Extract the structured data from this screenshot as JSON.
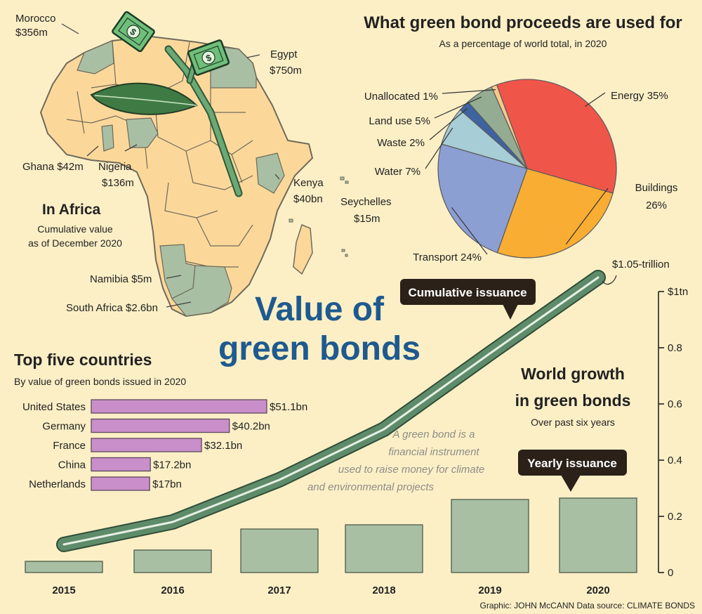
{
  "main_title": [
    "Value of",
    "green bonds"
  ],
  "credit": "Graphic: JOHN McCANN  Data source: CLIMATE BONDS",
  "africa": {
    "title": "In Africa",
    "subtitle": [
      "Cumulative value",
      "as of December 2020"
    ],
    "labels": [
      {
        "lines": [
          "Morocco",
          "$356m"
        ],
        "value_usd_m": 356
      },
      {
        "lines": [
          "Egypt",
          "$750m"
        ],
        "value_usd_m": 750
      },
      {
        "lines": [
          "Ghana $42m"
        ],
        "value_usd_m": 42
      },
      {
        "lines": [
          "Nigeria",
          "$136m"
        ],
        "value_usd_m": 136
      },
      {
        "lines": [
          "Kenya",
          "$40bn"
        ],
        "value_usd_m": 40000
      },
      {
        "lines": [
          "Seychelles",
          "$15m"
        ],
        "value_usd_m": 15
      },
      {
        "lines": [
          "Namibia $5m"
        ],
        "value_usd_m": 5
      },
      {
        "lines": [
          "South Africa $2.6bn"
        ],
        "value_usd_m": 2600
      }
    ],
    "colors": {
      "land": "#fbd89a",
      "highlight": "#a9bfa3",
      "sea_border": "#6f6a5a"
    }
  },
  "chart_data": [
    {
      "type": "pie",
      "title": "What green bond proceeds are used for",
      "subtitle": "As a percentage of world total, in 2020",
      "slices": [
        {
          "label": "Energy 35%",
          "value": 35,
          "color": "#f0554a"
        },
        {
          "label": "Buildings 26%",
          "value": 26,
          "color": "#f9ad33"
        },
        {
          "label": "Transport 24%",
          "value": 24,
          "color": "#8c9fd3"
        },
        {
          "label": "Water 7%",
          "value": 7,
          "color": "#a7cdd6"
        },
        {
          "label": "Waste 2%",
          "value": 2,
          "color": "#3e63a1"
        },
        {
          "label": "Land use 5%",
          "value": 5,
          "color": "#93ac92"
        },
        {
          "label": "Unallocated 1%",
          "value": 1,
          "color": "#f7c98a"
        }
      ]
    },
    {
      "type": "bar",
      "orientation": "horizontal",
      "title": "Top five countries",
      "subtitle": "By value of green bonds issued in 2020",
      "categories": [
        "United States",
        "Germany",
        "France",
        "China",
        "Netherlands"
      ],
      "values": [
        51.1,
        40.2,
        32.1,
        17.2,
        17
      ],
      "value_labels": [
        "$51.1bn",
        "$40.2bn",
        "$32.1bn",
        "$17.2bn",
        "$17bn"
      ],
      "unit": "$bn",
      "bar_color": "#c98fca"
    },
    {
      "type": "bar+line",
      "title": [
        "World growth",
        "in green bonds"
      ],
      "subtitle": "Over past six years",
      "note": [
        "A green bond is a",
        "financial instrument",
        "used to raise money for climate",
        "and environmental projects"
      ],
      "categories": [
        "2015",
        "2016",
        "2017",
        "2018",
        "2019",
        "2020"
      ],
      "yticks": [
        "$1tn",
        "0.8",
        "0.6",
        "0.4",
        "0.2",
        "0"
      ],
      "ylim": [
        0,
        1.0
      ],
      "series": [
        {
          "name": "Yearly issuance",
          "type": "bar",
          "values": [
            0.04,
            0.08,
            0.155,
            0.17,
            0.26,
            0.265
          ],
          "color": "#a9bfa3"
        },
        {
          "name": "Cumulative issuance",
          "type": "line",
          "values": [
            0.1,
            0.18,
            0.33,
            0.51,
            0.78,
            1.05
          ],
          "color": "#5e8c6a"
        }
      ],
      "end_label": "$1.05-trillion"
    }
  ]
}
